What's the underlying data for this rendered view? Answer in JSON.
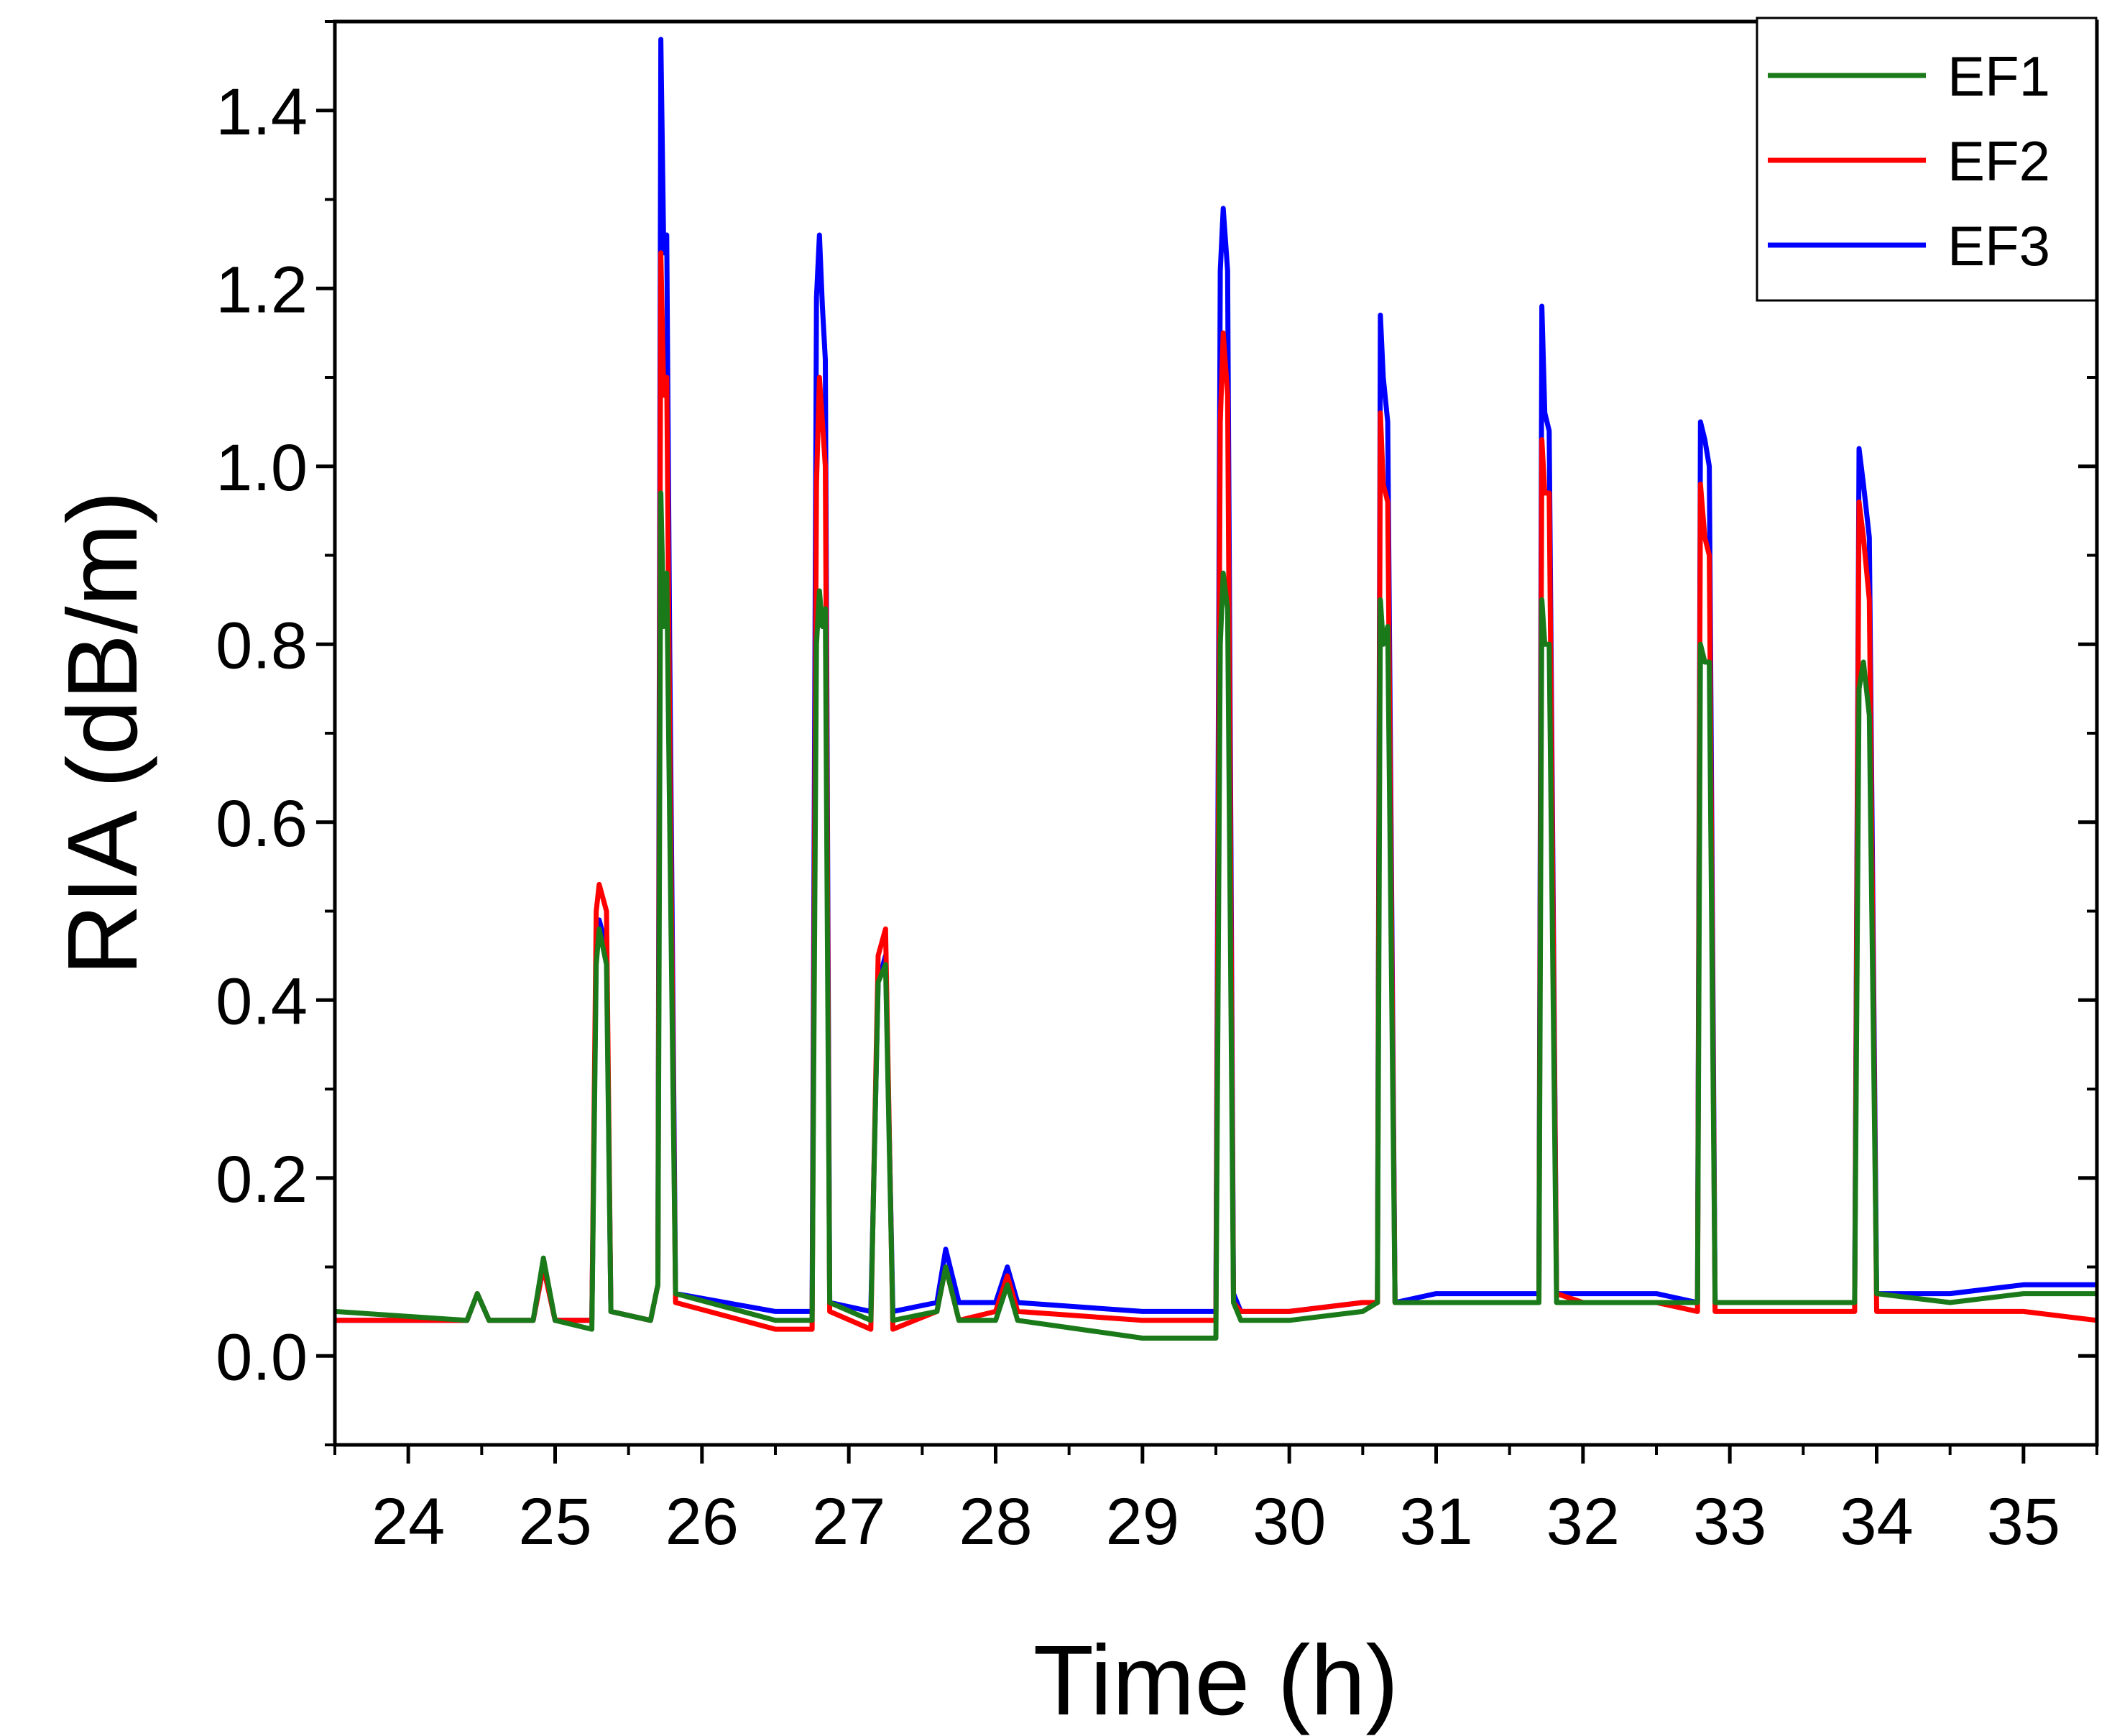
{
  "chart_data": {
    "type": "line",
    "title": "",
    "xlabel": "Time (h)",
    "ylabel": "RIA (dB/m)",
    "xlim": [
      23.5,
      35.5
    ],
    "ylim": [
      -0.1,
      1.5
    ],
    "xticks": [
      24,
      25,
      26,
      27,
      28,
      29,
      30,
      31,
      32,
      33,
      34,
      35
    ],
    "xtick_labels": [
      "24",
      "25",
      "26",
      "27",
      "28",
      "29",
      "30",
      "31",
      "32",
      "33",
      "34",
      "35"
    ],
    "yticks": [
      0.0,
      0.2,
      0.4,
      0.6,
      0.8,
      1.0,
      1.2,
      1.4
    ],
    "ytick_labels": [
      "0.0",
      "0.2",
      "0.4",
      "0.6",
      "0.8",
      "1.0",
      "1.2",
      "1.4"
    ],
    "legend_position": "top-right",
    "grid": false,
    "series": [
      {
        "name": "EF1",
        "color": "#1a7a1a",
        "x": [
          23.5,
          24.4,
          24.47,
          24.55,
          24.85,
          24.92,
          25.0,
          25.25,
          25.28,
          25.3,
          25.35,
          25.38,
          25.65,
          25.7,
          25.72,
          25.74,
          25.76,
          25.78,
          25.82,
          26.5,
          26.75,
          26.78,
          26.8,
          26.82,
          26.84,
          26.87,
          27.15,
          27.2,
          27.25,
          27.3,
          27.6,
          27.66,
          27.75,
          28.0,
          28.08,
          28.15,
          29.0,
          29.5,
          29.53,
          29.55,
          29.58,
          29.62,
          29.67,
          30.0,
          30.5,
          30.6,
          30.62,
          30.64,
          30.67,
          30.72,
          31.0,
          31.5,
          31.7,
          31.72,
          31.74,
          31.77,
          31.82,
          32.0,
          32.5,
          32.78,
          32.8,
          32.83,
          32.86,
          32.9,
          33.0,
          33.5,
          33.85,
          33.88,
          33.91,
          33.95,
          34.0,
          34.5,
          35.0,
          35.5
        ],
        "y": [
          0.05,
          0.04,
          0.07,
          0.04,
          0.04,
          0.11,
          0.04,
          0.03,
          0.44,
          0.48,
          0.44,
          0.05,
          0.04,
          0.08,
          0.97,
          0.82,
          0.88,
          0.6,
          0.07,
          0.04,
          0.04,
          0.8,
          0.86,
          0.82,
          0.84,
          0.06,
          0.04,
          0.42,
          0.44,
          0.04,
          0.05,
          0.1,
          0.04,
          0.04,
          0.08,
          0.04,
          0.02,
          0.02,
          0.8,
          0.88,
          0.84,
          0.06,
          0.04,
          0.04,
          0.05,
          0.06,
          0.85,
          0.8,
          0.82,
          0.06,
          0.06,
          0.06,
          0.06,
          0.85,
          0.8,
          0.8,
          0.06,
          0.06,
          0.06,
          0.06,
          0.8,
          0.78,
          0.78,
          0.06,
          0.06,
          0.06,
          0.06,
          0.75,
          0.78,
          0.72,
          0.07,
          0.06,
          0.07,
          0.07
        ]
      },
      {
        "name": "EF2",
        "color": "#ff0000",
        "x": [
          23.5,
          24.4,
          24.47,
          24.55,
          24.85,
          24.92,
          25.0,
          25.25,
          25.28,
          25.3,
          25.35,
          25.38,
          25.65,
          25.7,
          25.72,
          25.74,
          25.76,
          25.78,
          25.82,
          26.5,
          26.75,
          26.78,
          26.8,
          26.82,
          26.84,
          26.87,
          27.15,
          27.2,
          27.25,
          27.3,
          27.6,
          27.66,
          27.75,
          28.0,
          28.08,
          28.15,
          29.0,
          29.5,
          29.53,
          29.55,
          29.58,
          29.62,
          29.67,
          30.0,
          30.5,
          30.6,
          30.62,
          30.64,
          30.67,
          30.72,
          31.0,
          31.5,
          31.7,
          31.72,
          31.74,
          31.77,
          31.82,
          32.0,
          32.5,
          32.78,
          32.8,
          32.83,
          32.86,
          32.9,
          33.0,
          33.5,
          33.85,
          33.88,
          33.91,
          33.95,
          34.0,
          34.5,
          35.0,
          35.5
        ],
        "y": [
          0.04,
          0.04,
          0.07,
          0.04,
          0.04,
          0.1,
          0.04,
          0.04,
          0.5,
          0.53,
          0.5,
          0.05,
          0.04,
          0.08,
          1.24,
          1.08,
          1.1,
          0.7,
          0.06,
          0.03,
          0.03,
          0.98,
          1.1,
          1.05,
          1.0,
          0.05,
          0.03,
          0.45,
          0.48,
          0.03,
          0.05,
          0.1,
          0.04,
          0.05,
          0.09,
          0.05,
          0.04,
          0.04,
          1.05,
          1.15,
          1.08,
          0.06,
          0.05,
          0.05,
          0.06,
          0.06,
          1.06,
          0.98,
          0.96,
          0.06,
          0.06,
          0.06,
          0.06,
          1.03,
          0.97,
          0.97,
          0.07,
          0.06,
          0.06,
          0.05,
          0.98,
          0.92,
          0.9,
          0.05,
          0.05,
          0.05,
          0.05,
          0.96,
          0.92,
          0.85,
          0.05,
          0.05,
          0.05,
          0.04
        ]
      },
      {
        "name": "EF3",
        "color": "#0000ff",
        "x": [
          23.5,
          24.4,
          24.47,
          24.55,
          24.85,
          24.92,
          25.0,
          25.25,
          25.28,
          25.3,
          25.35,
          25.38,
          25.65,
          25.7,
          25.72,
          25.74,
          25.76,
          25.78,
          25.82,
          26.5,
          26.75,
          26.78,
          26.8,
          26.82,
          26.84,
          26.87,
          27.15,
          27.2,
          27.25,
          27.3,
          27.6,
          27.66,
          27.75,
          28.0,
          28.08,
          28.15,
          29.0,
          29.5,
          29.53,
          29.55,
          29.58,
          29.62,
          29.67,
          30.0,
          30.5,
          30.6,
          30.62,
          30.64,
          30.67,
          30.72,
          31.0,
          31.5,
          31.7,
          31.72,
          31.74,
          31.77,
          31.82,
          32.0,
          32.5,
          32.78,
          32.8,
          32.83,
          32.86,
          32.9,
          33.0,
          33.5,
          33.85,
          33.88,
          33.91,
          33.95,
          34.0,
          34.5,
          35.0,
          35.5
        ],
        "y": [
          0.04,
          0.04,
          0.07,
          0.04,
          0.04,
          0.1,
          0.04,
          0.04,
          0.46,
          0.49,
          0.46,
          0.05,
          0.04,
          0.08,
          1.48,
          1.24,
          1.26,
          0.8,
          0.07,
          0.05,
          0.05,
          1.19,
          1.26,
          1.18,
          1.12,
          0.06,
          0.05,
          0.42,
          0.45,
          0.05,
          0.06,
          0.12,
          0.06,
          0.06,
          0.1,
          0.06,
          0.05,
          0.05,
          1.22,
          1.29,
          1.22,
          0.07,
          0.05,
          0.05,
          0.06,
          0.06,
          1.17,
          1.1,
          1.05,
          0.06,
          0.07,
          0.07,
          0.07,
          1.18,
          1.06,
          1.04,
          0.07,
          0.07,
          0.07,
          0.06,
          1.05,
          1.03,
          1.0,
          0.06,
          0.06,
          0.06,
          0.06,
          1.02,
          0.98,
          0.92,
          0.07,
          0.07,
          0.08,
          0.08
        ]
      }
    ]
  }
}
